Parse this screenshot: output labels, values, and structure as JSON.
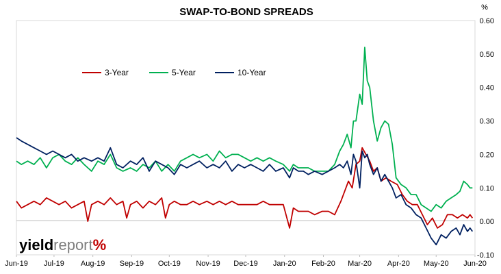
{
  "chart_data": {
    "type": "line",
    "title": "SWAP-TO-BOND SPREADS",
    "ylabel": "%",
    "xlabel": "",
    "ylim": [
      -0.1,
      0.6
    ],
    "yticks": [
      "0.60",
      "0.50",
      "0.40",
      "0.30",
      "0.20",
      "0.10",
      "0.00",
      "-0.10"
    ],
    "ytick_values": [
      0.6,
      0.5,
      0.4,
      0.3,
      0.2,
      0.1,
      0.0,
      -0.1
    ],
    "xticks": [
      "Jun-19",
      "Jul-19",
      "Aug-19",
      "Sep-19",
      "Oct-19",
      "Nov-19",
      "Dec-19",
      "Jan-20",
      "Feb-20",
      "Mar-20",
      "Apr-20",
      "May-20",
      "Jun-20"
    ],
    "x_range": [
      "2019-06-01",
      "2020-06-01"
    ],
    "grid": false,
    "legend_position": "top-left",
    "series": [
      {
        "name": "3-Year",
        "color": "#c00000",
        "points": [
          [
            "2019-06-01",
            0.06
          ],
          [
            "2019-06-05",
            0.04
          ],
          [
            "2019-06-10",
            0.05
          ],
          [
            "2019-06-15",
            0.06
          ],
          [
            "2019-06-20",
            0.05
          ],
          [
            "2019-06-25",
            0.07
          ],
          [
            "2019-06-30",
            0.06
          ],
          [
            "2019-07-05",
            0.05
          ],
          [
            "2019-07-10",
            0.06
          ],
          [
            "2019-07-15",
            0.04
          ],
          [
            "2019-07-20",
            0.05
          ],
          [
            "2019-07-25",
            0.06
          ],
          [
            "2019-07-28",
            0.0
          ],
          [
            "2019-07-31",
            0.05
          ],
          [
            "2019-08-05",
            0.06
          ],
          [
            "2019-08-10",
            0.05
          ],
          [
            "2019-08-15",
            0.07
          ],
          [
            "2019-08-20",
            0.05
          ],
          [
            "2019-08-25",
            0.06
          ],
          [
            "2019-08-28",
            0.01
          ],
          [
            "2019-08-31",
            0.05
          ],
          [
            "2019-09-05",
            0.06
          ],
          [
            "2019-09-10",
            0.04
          ],
          [
            "2019-09-15",
            0.06
          ],
          [
            "2019-09-20",
            0.05
          ],
          [
            "2019-09-25",
            0.07
          ],
          [
            "2019-09-28",
            0.01
          ],
          [
            "2019-10-01",
            0.05
          ],
          [
            "2019-10-05",
            0.06
          ],
          [
            "2019-10-10",
            0.05
          ],
          [
            "2019-10-15",
            0.05
          ],
          [
            "2019-10-20",
            0.06
          ],
          [
            "2019-10-25",
            0.05
          ],
          [
            "2019-10-31",
            0.06
          ],
          [
            "2019-11-05",
            0.05
          ],
          [
            "2019-11-10",
            0.06
          ],
          [
            "2019-11-15",
            0.05
          ],
          [
            "2019-11-20",
            0.06
          ],
          [
            "2019-11-25",
            0.05
          ],
          [
            "2019-11-30",
            0.05
          ],
          [
            "2019-12-05",
            0.05
          ],
          [
            "2019-12-10",
            0.05
          ],
          [
            "2019-12-15",
            0.06
          ],
          [
            "2019-12-20",
            0.05
          ],
          [
            "2019-12-25",
            0.05
          ],
          [
            "2019-12-31",
            0.05
          ],
          [
            "2020-01-05",
            -0.02
          ],
          [
            "2020-01-08",
            0.04
          ],
          [
            "2020-01-12",
            0.03
          ],
          [
            "2020-01-16",
            0.03
          ],
          [
            "2020-01-20",
            0.03
          ],
          [
            "2020-01-25",
            0.02
          ],
          [
            "2020-01-31",
            0.03
          ],
          [
            "2020-02-05",
            0.03
          ],
          [
            "2020-02-10",
            0.02
          ],
          [
            "2020-02-15",
            0.06
          ],
          [
            "2020-02-18",
            0.09
          ],
          [
            "2020-02-21",
            0.12
          ],
          [
            "2020-02-24",
            0.1
          ],
          [
            "2020-02-27",
            0.17
          ],
          [
            "2020-03-01",
            0.18
          ],
          [
            "2020-03-03",
            0.22
          ],
          [
            "2020-03-06",
            0.2
          ],
          [
            "2020-03-09",
            0.18
          ],
          [
            "2020-03-12",
            0.15
          ],
          [
            "2020-03-15",
            0.16
          ],
          [
            "2020-03-18",
            0.12
          ],
          [
            "2020-03-22",
            0.13
          ],
          [
            "2020-03-26",
            0.12
          ],
          [
            "2020-03-31",
            0.11
          ],
          [
            "2020-04-04",
            0.08
          ],
          [
            "2020-04-08",
            0.06
          ],
          [
            "2020-04-12",
            0.05
          ],
          [
            "2020-04-16",
            0.05
          ],
          [
            "2020-04-20",
            0.02
          ],
          [
            "2020-04-24",
            -0.01
          ],
          [
            "2020-04-28",
            0.01
          ],
          [
            "2020-05-02",
            -0.02
          ],
          [
            "2020-05-06",
            -0.01
          ],
          [
            "2020-05-10",
            0.02
          ],
          [
            "2020-05-14",
            0.02
          ],
          [
            "2020-05-18",
            0.01
          ],
          [
            "2020-05-22",
            0.02
          ],
          [
            "2020-05-26",
            0.01
          ],
          [
            "2020-05-28",
            0.02
          ],
          [
            "2020-05-30",
            0.01
          ]
        ]
      },
      {
        "name": "5-Year",
        "color": "#00b050",
        "points": [
          [
            "2019-06-01",
            0.18
          ],
          [
            "2019-06-05",
            0.17
          ],
          [
            "2019-06-10",
            0.18
          ],
          [
            "2019-06-15",
            0.17
          ],
          [
            "2019-06-20",
            0.19
          ],
          [
            "2019-06-25",
            0.16
          ],
          [
            "2019-06-30",
            0.19
          ],
          [
            "2019-07-05",
            0.2
          ],
          [
            "2019-07-10",
            0.18
          ],
          [
            "2019-07-15",
            0.17
          ],
          [
            "2019-07-20",
            0.19
          ],
          [
            "2019-07-25",
            0.17
          ],
          [
            "2019-07-31",
            0.15
          ],
          [
            "2019-08-05",
            0.18
          ],
          [
            "2019-08-10",
            0.17
          ],
          [
            "2019-08-15",
            0.2
          ],
          [
            "2019-08-20",
            0.16
          ],
          [
            "2019-08-25",
            0.15
          ],
          [
            "2019-08-31",
            0.16
          ],
          [
            "2019-09-05",
            0.15
          ],
          [
            "2019-09-10",
            0.17
          ],
          [
            "2019-09-15",
            0.16
          ],
          [
            "2019-09-20",
            0.18
          ],
          [
            "2019-09-25",
            0.15
          ],
          [
            "2019-09-30",
            0.17
          ],
          [
            "2019-10-05",
            0.15
          ],
          [
            "2019-10-10",
            0.18
          ],
          [
            "2019-10-15",
            0.19
          ],
          [
            "2019-10-20",
            0.2
          ],
          [
            "2019-10-25",
            0.19
          ],
          [
            "2019-10-31",
            0.2
          ],
          [
            "2019-11-05",
            0.18
          ],
          [
            "2019-11-10",
            0.21
          ],
          [
            "2019-11-15",
            0.19
          ],
          [
            "2019-11-20",
            0.2
          ],
          [
            "2019-11-25",
            0.2
          ],
          [
            "2019-11-30",
            0.19
          ],
          [
            "2019-12-05",
            0.18
          ],
          [
            "2019-12-10",
            0.19
          ],
          [
            "2019-12-15",
            0.18
          ],
          [
            "2019-12-20",
            0.19
          ],
          [
            "2019-12-25",
            0.18
          ],
          [
            "2019-12-31",
            0.17
          ],
          [
            "2020-01-05",
            0.15
          ],
          [
            "2020-01-08",
            0.17
          ],
          [
            "2020-01-12",
            0.16
          ],
          [
            "2020-01-16",
            0.16
          ],
          [
            "2020-01-20",
            0.16
          ],
          [
            "2020-01-25",
            0.15
          ],
          [
            "2020-01-31",
            0.15
          ],
          [
            "2020-02-05",
            0.15
          ],
          [
            "2020-02-10",
            0.17
          ],
          [
            "2020-02-14",
            0.21
          ],
          [
            "2020-02-17",
            0.23
          ],
          [
            "2020-02-20",
            0.26
          ],
          [
            "2020-02-23",
            0.22
          ],
          [
            "2020-02-25",
            0.3
          ],
          [
            "2020-02-27",
            0.3
          ],
          [
            "2020-03-01",
            0.38
          ],
          [
            "2020-03-03",
            0.35
          ],
          [
            "2020-03-05",
            0.52
          ],
          [
            "2020-03-07",
            0.42
          ],
          [
            "2020-03-09",
            0.4
          ],
          [
            "2020-03-12",
            0.3
          ],
          [
            "2020-03-15",
            0.24
          ],
          [
            "2020-03-18",
            0.28
          ],
          [
            "2020-03-21",
            0.3
          ],
          [
            "2020-03-24",
            0.29
          ],
          [
            "2020-03-27",
            0.23
          ],
          [
            "2020-03-30",
            0.13
          ],
          [
            "2020-04-03",
            0.11
          ],
          [
            "2020-04-07",
            0.1
          ],
          [
            "2020-04-11",
            0.08
          ],
          [
            "2020-04-15",
            0.08
          ],
          [
            "2020-04-19",
            0.05
          ],
          [
            "2020-04-23",
            0.04
          ],
          [
            "2020-04-27",
            0.03
          ],
          [
            "2020-05-01",
            0.05
          ],
          [
            "2020-05-05",
            0.04
          ],
          [
            "2020-05-09",
            0.06
          ],
          [
            "2020-05-13",
            0.07
          ],
          [
            "2020-05-17",
            0.08
          ],
          [
            "2020-05-20",
            0.09
          ],
          [
            "2020-05-23",
            0.12
          ],
          [
            "2020-05-26",
            0.11
          ],
          [
            "2020-05-28",
            0.1
          ],
          [
            "2020-05-30",
            0.1
          ]
        ]
      },
      {
        "name": "10-Year",
        "color": "#002060",
        "points": [
          [
            "2019-06-01",
            0.25
          ],
          [
            "2019-06-05",
            0.24
          ],
          [
            "2019-06-10",
            0.23
          ],
          [
            "2019-06-15",
            0.22
          ],
          [
            "2019-06-20",
            0.21
          ],
          [
            "2019-06-25",
            0.2
          ],
          [
            "2019-06-30",
            0.21
          ],
          [
            "2019-07-05",
            0.2
          ],
          [
            "2019-07-10",
            0.19
          ],
          [
            "2019-07-15",
            0.2
          ],
          [
            "2019-07-20",
            0.18
          ],
          [
            "2019-07-25",
            0.19
          ],
          [
            "2019-07-31",
            0.18
          ],
          [
            "2019-08-05",
            0.19
          ],
          [
            "2019-08-10",
            0.18
          ],
          [
            "2019-08-15",
            0.22
          ],
          [
            "2019-08-20",
            0.17
          ],
          [
            "2019-08-25",
            0.16
          ],
          [
            "2019-08-31",
            0.18
          ],
          [
            "2019-09-05",
            0.17
          ],
          [
            "2019-09-10",
            0.19
          ],
          [
            "2019-09-15",
            0.15
          ],
          [
            "2019-09-20",
            0.18
          ],
          [
            "2019-09-25",
            0.17
          ],
          [
            "2019-09-30",
            0.16
          ],
          [
            "2019-10-05",
            0.14
          ],
          [
            "2019-10-10",
            0.17
          ],
          [
            "2019-10-15",
            0.16
          ],
          [
            "2019-10-20",
            0.17
          ],
          [
            "2019-10-25",
            0.18
          ],
          [
            "2019-10-31",
            0.16
          ],
          [
            "2019-11-05",
            0.17
          ],
          [
            "2019-11-10",
            0.16
          ],
          [
            "2019-11-15",
            0.18
          ],
          [
            "2019-11-20",
            0.15
          ],
          [
            "2019-11-25",
            0.17
          ],
          [
            "2019-11-30",
            0.16
          ],
          [
            "2019-12-05",
            0.17
          ],
          [
            "2019-12-10",
            0.16
          ],
          [
            "2019-12-15",
            0.15
          ],
          [
            "2019-12-20",
            0.17
          ],
          [
            "2019-12-25",
            0.15
          ],
          [
            "2019-12-31",
            0.16
          ],
          [
            "2020-01-05",
            0.13
          ],
          [
            "2020-01-08",
            0.16
          ],
          [
            "2020-01-12",
            0.15
          ],
          [
            "2020-01-16",
            0.15
          ],
          [
            "2020-01-20",
            0.14
          ],
          [
            "2020-01-25",
            0.15
          ],
          [
            "2020-01-31",
            0.14
          ],
          [
            "2020-02-05",
            0.15
          ],
          [
            "2020-02-10",
            0.16
          ],
          [
            "2020-02-14",
            0.17
          ],
          [
            "2020-02-17",
            0.16
          ],
          [
            "2020-02-20",
            0.18
          ],
          [
            "2020-02-23",
            0.14
          ],
          [
            "2020-02-25",
            0.2
          ],
          [
            "2020-02-27",
            0.18
          ],
          [
            "2020-03-01",
            0.1
          ],
          [
            "2020-03-03",
            0.21
          ],
          [
            "2020-03-05",
            0.19
          ],
          [
            "2020-03-07",
            0.2
          ],
          [
            "2020-03-09",
            0.17
          ],
          [
            "2020-03-12",
            0.14
          ],
          [
            "2020-03-15",
            0.16
          ],
          [
            "2020-03-18",
            0.12
          ],
          [
            "2020-03-21",
            0.14
          ],
          [
            "2020-03-24",
            0.12
          ],
          [
            "2020-03-27",
            0.1
          ],
          [
            "2020-03-30",
            0.07
          ],
          [
            "2020-04-03",
            0.08
          ],
          [
            "2020-04-07",
            0.05
          ],
          [
            "2020-04-11",
            0.04
          ],
          [
            "2020-04-15",
            0.02
          ],
          [
            "2020-04-19",
            0.01
          ],
          [
            "2020-04-23",
            -0.02
          ],
          [
            "2020-04-27",
            -0.05
          ],
          [
            "2020-05-01",
            -0.07
          ],
          [
            "2020-05-05",
            -0.04
          ],
          [
            "2020-05-09",
            -0.05
          ],
          [
            "2020-05-13",
            -0.03
          ],
          [
            "2020-05-17",
            -0.02
          ],
          [
            "2020-05-20",
            -0.04
          ],
          [
            "2020-05-23",
            -0.01
          ],
          [
            "2020-05-26",
            -0.03
          ],
          [
            "2020-05-28",
            -0.02
          ],
          [
            "2020-05-30",
            -0.03
          ]
        ]
      }
    ]
  },
  "logo": {
    "part1": "yield",
    "part2": "report",
    "part3": "%",
    "color1": "#000000",
    "color2": "#7f7f7f",
    "color3": "#c00000"
  }
}
